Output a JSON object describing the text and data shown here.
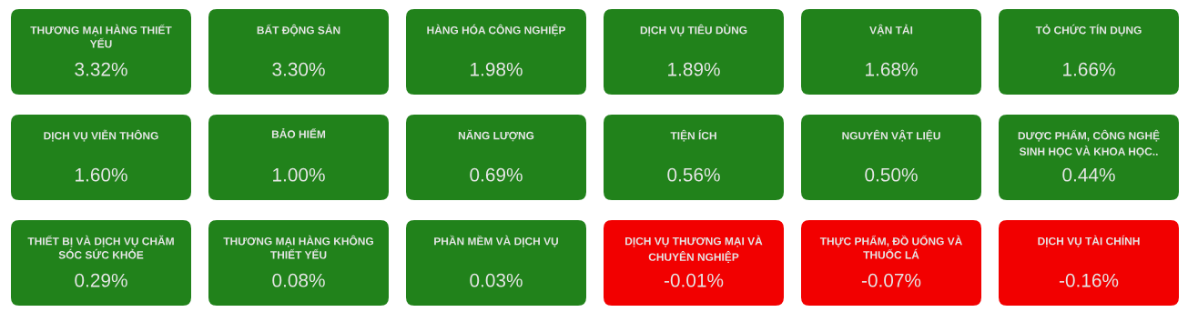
{
  "chart_data": {
    "type": "other",
    "categories": [
      "THƯƠNG MẠI HÀNG THIẾT YẾU",
      "BẤT ĐỘNG SẢN",
      "HÀNG HÓA CÔNG NGHIỆP",
      "DỊCH VỤ TIÊU DÙNG",
      "VẬN TẢI",
      "TỎ CHỨC TÍN DỤNG",
      "DỊCH VỤ VIỄN THÔNG",
      "BẢO HIỂM",
      "NĂNG LƯỢNG",
      "TIỆN ÍCH",
      "NGUYÊN VẬT LIỆU",
      "DƯỢC PHẨM, CÔNG NGHỆ SINH HỌC VÀ KHOA HỌC..",
      "THIẾT BỊ VÀ DỊCH VỤ CHĂM SÓC SỨC KHỎE",
      "THƯƠNG MẠI HÀNG KHÔNG THIẾT YẾU",
      "PHẦN MỀM VÀ DỊCH VỤ",
      "DỊCH VỤ THƯƠNG MẠI VÀ CHUYÊN NGHIỆP",
      "THỰC PHẨM, ĐỒ UỐNG VÀ THUỐC LÁ",
      "DỊCH VỤ TÀI CHÍNH"
    ],
    "values": [
      3.32,
      3.3,
      1.98,
      1.89,
      1.68,
      1.66,
      1.6,
      1.0,
      0.69,
      0.56,
      0.5,
      0.44,
      0.29,
      0.08,
      0.03,
      -0.01,
      -0.07,
      -0.16
    ],
    "value_labels": [
      "3.32%",
      "3.30%",
      "1.98%",
      "1.89%",
      "1.68%",
      "1.66%",
      "1.60%",
      "1.00%",
      "0.69%",
      "0.56%",
      "0.50%",
      "0.44%",
      "0.29%",
      "0.08%",
      "0.03%",
      "-0.01%",
      "-0.07%",
      "-0.16%"
    ],
    "colors": [
      "#21821b",
      "#21821b",
      "#21821b",
      "#21821b",
      "#21821b",
      "#21821b",
      "#21821b",
      "#21821b",
      "#21821b",
      "#21821b",
      "#21821b",
      "#21821b",
      "#21821b",
      "#21821b",
      "#21821b",
      "#f20000",
      "#f20000",
      "#f20000"
    ]
  }
}
